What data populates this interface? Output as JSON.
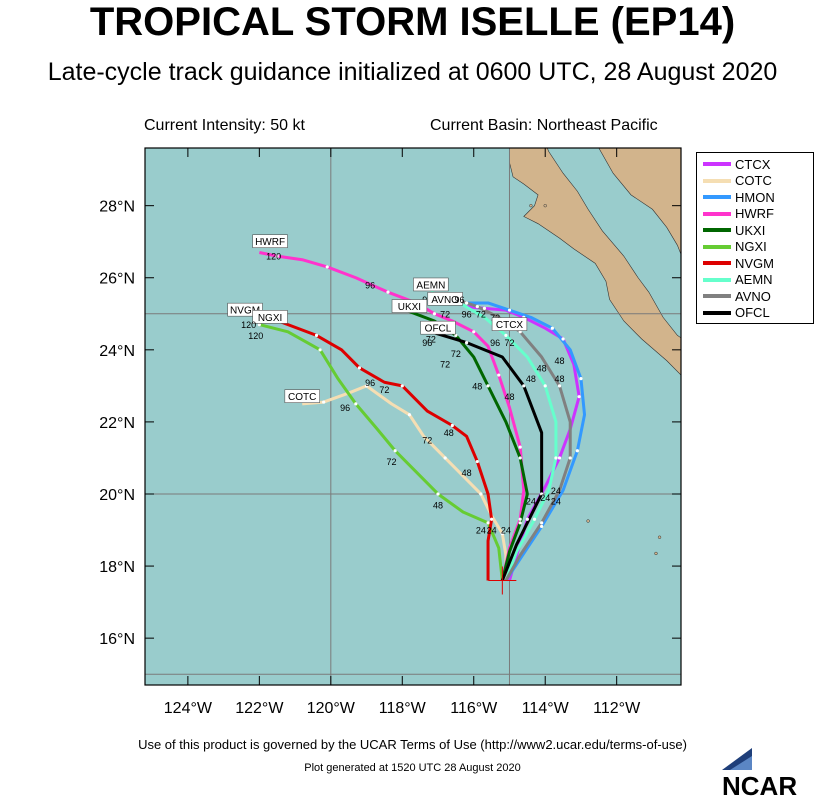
{
  "title": "TROPICAL STORM ISELLE (EP14)",
  "subtitle": "Late-cycle track guidance initialized at 0600 UTC, 28 August 2020",
  "current_intensity": "Current Intensity: 50 kt",
  "current_basin": "Current Basin: Northeast Pacific",
  "footer_terms": "Use of this product is governed by the UCAR Terms of Use (http://www2.ucar.edu/terms-of-use)",
  "footer_generated": "Plot generated at 1520 UTC   28 August 2020",
  "logo_text": "NCAR",
  "chart_data": {
    "type": "map-track",
    "xlim": [
      -125.2,
      -110.2
    ],
    "ylim": [
      14.7,
      29.6
    ],
    "x_ticks": [
      -124,
      -122,
      -120,
      -118,
      -116,
      -114,
      -112
    ],
    "x_tick_labels": [
      "124°W",
      "122°W",
      "120°W",
      "118°W",
      "116°W",
      "114°W",
      "112°W"
    ],
    "y_ticks": [
      16,
      18,
      20,
      22,
      24,
      26,
      28
    ],
    "y_tick_labels": [
      "16°N",
      "18°N",
      "20°N",
      "22°N",
      "24°N",
      "26°N",
      "28°N"
    ],
    "grid_lon": [
      -120,
      -115
    ],
    "grid_lat": [
      15,
      20,
      25
    ],
    "colors": {
      "ocean": "#99cccc",
      "land": "#d2b48c"
    },
    "storm_position": {
      "lon": -115.2,
      "lat": 17.6
    },
    "legend_position": "outside-right",
    "series": [
      {
        "name": "CTCX",
        "color": "#cc33ff",
        "lon": [
          -115.0,
          -114.8,
          -114.5,
          -114.0,
          -113.6,
          -113.3,
          -113.05,
          -113.2,
          -113.5,
          -114.0,
          -114.6,
          -115.1,
          -115.7,
          -116.2
        ],
        "lat": [
          17.6,
          18.3,
          19.3,
          20.2,
          21.0,
          21.8,
          22.7,
          23.6,
          24.3,
          24.6,
          24.9,
          25.1,
          25.15,
          25.2
        ],
        "labels": []
      },
      {
        "name": "COTC",
        "color": "#f5deb3",
        "lon": [
          -115.1,
          -115.1,
          -115.2,
          -115.5,
          -115.8,
          -116.3,
          -116.8,
          -117.4,
          -117.8,
          -118.3,
          -119.0,
          -119.5,
          -120.2,
          -120.8
        ],
        "lat": [
          17.6,
          18.3,
          18.9,
          19.4,
          20.0,
          20.5,
          21.0,
          21.6,
          22.2,
          22.5,
          23.0,
          22.8,
          22.55,
          22.5
        ],
        "labels": [
          "24",
          "48",
          "72",
          "96",
          "COTC"
        ]
      },
      {
        "name": "HMON",
        "color": "#3399ff",
        "lon": [
          -115.1,
          -114.7,
          -114.1,
          -113.5,
          -113.1,
          -112.9,
          -113.0,
          -113.3,
          -113.8,
          -114.4,
          -115.0,
          -115.6,
          -116.2
        ],
        "lat": [
          17.6,
          18.2,
          19.1,
          20.1,
          21.2,
          22.2,
          23.2,
          24.0,
          24.6,
          24.9,
          25.1,
          25.3,
          25.3
        ],
        "labels": []
      },
      {
        "name": "HWRF",
        "color": "#ff33cc",
        "lon": [
          -115.2,
          -115.0,
          -114.7,
          -114.6,
          -114.7,
          -115.0,
          -115.3,
          -115.6,
          -116.0,
          -116.6,
          -117.1,
          -117.6,
          -118.4,
          -119.3,
          -120.1,
          -120.8,
          -121.5,
          -122.0
        ],
        "lat": [
          17.6,
          18.5,
          19.3,
          20.1,
          21.3,
          22.4,
          23.3,
          24.1,
          24.5,
          24.8,
          25.0,
          25.3,
          25.6,
          26.0,
          26.3,
          26.5,
          26.6,
          26.7
        ],
        "labels": [
          "24",
          "48",
          "72",
          "96",
          "120",
          "HWRF"
        ]
      },
      {
        "name": "UKXI",
        "color": "#006600",
        "lon": [
          -115.2,
          -115.0,
          -114.7,
          -114.5,
          -114.7,
          -115.1,
          -115.6,
          -116.0,
          -116.5,
          -117.1,
          -117.9
        ],
        "lat": [
          17.6,
          18.4,
          19.2,
          20.0,
          21.0,
          22.0,
          23.0,
          23.8,
          24.4,
          24.8,
          25.1
        ],
        "labels": [
          "24",
          "48",
          "72",
          "UKXI"
        ]
      },
      {
        "name": "NGXI",
        "color": "#66cc33",
        "lon": [
          -115.2,
          -115.3,
          -115.6,
          -116.3,
          -117.0,
          -117.6,
          -118.2,
          -118.7,
          -119.3,
          -119.8,
          -120.3,
          -121.2,
          -122.0
        ],
        "lat": [
          17.6,
          18.5,
          19.2,
          19.5,
          20.0,
          20.6,
          21.2,
          21.8,
          22.5,
          23.2,
          24.0,
          24.5,
          24.7
        ],
        "labels": [
          "24",
          "48",
          "72",
          "96",
          "120",
          "NGXI"
        ]
      },
      {
        "name": "NVGM",
        "color": "#dd0000",
        "lon": [
          -115.6,
          -115.6,
          -115.5,
          -115.6,
          -115.9,
          -116.2,
          -116.6,
          -117.3,
          -118.0,
          -118.5,
          -119.2,
          -119.7,
          -120.4,
          -121.2,
          -122.0
        ],
        "lat": [
          17.6,
          18.7,
          19.3,
          20.0,
          20.9,
          21.6,
          21.9,
          22.3,
          23.0,
          23.1,
          23.5,
          24.0,
          24.4,
          24.7,
          25.0
        ],
        "labels": [
          "24",
          "48",
          "72",
          "96",
          "120",
          "NVGM"
        ]
      },
      {
        "name": "AEMN",
        "color": "#66ffcc",
        "lon": [
          -115.1,
          -114.8,
          -114.3,
          -113.9,
          -113.7,
          -113.7,
          -114.0,
          -114.5,
          -115.1,
          -115.7,
          -116.4,
          -117.2
        ],
        "lat": [
          17.6,
          18.4,
          19.3,
          20.1,
          21.0,
          22.0,
          23.0,
          23.8,
          24.4,
          24.9,
          25.3,
          25.6
        ],
        "labels": [
          "24",
          "48",
          "72",
          "96",
          "AEMN"
        ]
      },
      {
        "name": "AVNO",
        "color": "#808080",
        "lon": [
          -115.1,
          -114.7,
          -114.1,
          -113.6,
          -113.3,
          -113.3,
          -113.6,
          -114.1,
          -114.7,
          -115.3,
          -115.9,
          -116.5
        ],
        "lat": [
          17.6,
          18.3,
          19.2,
          20.1,
          21.0,
          22.0,
          23.0,
          23.8,
          24.5,
          24.9,
          25.2,
          25.4
        ],
        "labels": [
          "24",
          "48",
          "72",
          "96",
          "AVNO"
        ]
      },
      {
        "name": "OFCL",
        "color": "#000000",
        "lon": [
          -115.2,
          -114.8,
          -114.1,
          -114.1,
          -114.6,
          -115.2,
          -116.2,
          -117.2
        ],
        "lat": [
          17.6,
          18.6,
          20.0,
          21.7,
          23.0,
          23.8,
          24.2,
          24.5
        ],
        "labels": [
          "24",
          "48",
          "72",
          "96",
          "OFCL"
        ]
      }
    ],
    "point_labels": [
      {
        "text": "HWRF",
        "lon": -121.7,
        "lat": 27.0,
        "boxed": true
      },
      {
        "text": "120",
        "lon": -121.6,
        "lat": 26.6,
        "boxed": false
      },
      {
        "text": "96",
        "lon": -118.9,
        "lat": 25.8,
        "boxed": false
      },
      {
        "text": "AEMN",
        "lon": -117.2,
        "lat": 25.8,
        "boxed": true
      },
      {
        "text": "96",
        "lon": -117.3,
        "lat": 25.4,
        "boxed": false
      },
      {
        "text": "AVNO",
        "lon": -116.8,
        "lat": 25.4,
        "boxed": true
      },
      {
        "text": "96",
        "lon": -116.4,
        "lat": 25.4,
        "boxed": false
      },
      {
        "text": "UKXI",
        "lon": -117.8,
        "lat": 25.2,
        "boxed": true
      },
      {
        "text": "72",
        "lon": -116.8,
        "lat": 25.0,
        "boxed": false
      },
      {
        "text": "96",
        "lon": -116.2,
        "lat": 25.0,
        "boxed": false
      },
      {
        "text": "72",
        "lon": -115.8,
        "lat": 25.0,
        "boxed": false
      },
      {
        "text": "72",
        "lon": -115.4,
        "lat": 24.9,
        "boxed": false
      },
      {
        "text": "NVGM",
        "lon": -122.4,
        "lat": 25.1,
        "boxed": true
      },
      {
        "text": "NGXI",
        "lon": -121.7,
        "lat": 24.9,
        "boxed": true
      },
      {
        "text": "120",
        "lon": -122.3,
        "lat": 24.7,
        "boxed": false
      },
      {
        "text": "120",
        "lon": -122.1,
        "lat": 24.4,
        "boxed": false
      },
      {
        "text": "OFCL",
        "lon": -117.0,
        "lat": 24.6,
        "boxed": true
      },
      {
        "text": "96",
        "lon": -117.3,
        "lat": 24.2,
        "boxed": false
      },
      {
        "text": "72",
        "lon": -117.2,
        "lat": 24.3,
        "boxed": false
      },
      {
        "text": "72",
        "lon": -116.5,
        "lat": 23.9,
        "boxed": false
      },
      {
        "text": "72",
        "lon": -116.8,
        "lat": 23.6,
        "boxed": false
      },
      {
        "text": "CTCX",
        "lon": -115.0,
        "lat": 24.7,
        "boxed": true
      },
      {
        "text": "96",
        "lon": -115.4,
        "lat": 24.2,
        "boxed": false
      },
      {
        "text": "72",
        "lon": -115.0,
        "lat": 24.2,
        "boxed": false
      },
      {
        "text": "48",
        "lon": -114.1,
        "lat": 23.5,
        "boxed": false
      },
      {
        "text": "48",
        "lon": -113.6,
        "lat": 23.7,
        "boxed": false
      },
      {
        "text": "48",
        "lon": -114.4,
        "lat": 23.2,
        "boxed": false
      },
      {
        "text": "48",
        "lon": -113.6,
        "lat": 23.2,
        "boxed": false
      },
      {
        "text": "48",
        "lon": -115.9,
        "lat": 23.0,
        "boxed": false
      },
      {
        "text": "48",
        "lon": -115.0,
        "lat": 22.7,
        "boxed": false
      },
      {
        "text": "96",
        "lon": -118.9,
        "lat": 23.1,
        "boxed": false
      },
      {
        "text": "72",
        "lon": -118.5,
        "lat": 22.9,
        "boxed": false
      },
      {
        "text": "COTC",
        "lon": -120.8,
        "lat": 22.7,
        "boxed": true
      },
      {
        "text": "96",
        "lon": -119.6,
        "lat": 22.4,
        "boxed": false
      },
      {
        "text": "72",
        "lon": -117.3,
        "lat": 21.5,
        "boxed": false
      },
      {
        "text": "48",
        "lon": -116.7,
        "lat": 21.7,
        "boxed": false
      },
      {
        "text": "72",
        "lon": -118.3,
        "lat": 20.9,
        "boxed": false
      },
      {
        "text": "48",
        "lon": -116.2,
        "lat": 20.6,
        "boxed": false
      },
      {
        "text": "48",
        "lon": -117.0,
        "lat": 19.7,
        "boxed": false
      },
      {
        "text": "24",
        "lon": -114.4,
        "lat": 19.8,
        "boxed": false
      },
      {
        "text": "24",
        "lon": -114.0,
        "lat": 19.9,
        "boxed": false
      },
      {
        "text": "24",
        "lon": -113.7,
        "lat": 20.1,
        "boxed": false
      },
      {
        "text": "24",
        "lon": -113.7,
        "lat": 19.8,
        "boxed": false
      },
      {
        "text": "24",
        "lon": -115.8,
        "lat": 19.0,
        "boxed": false
      },
      {
        "text": "24",
        "lon": -115.5,
        "lat": 19.0,
        "boxed": false
      },
      {
        "text": "24",
        "lon": -115.1,
        "lat": 19.0,
        "boxed": false
      }
    ]
  }
}
